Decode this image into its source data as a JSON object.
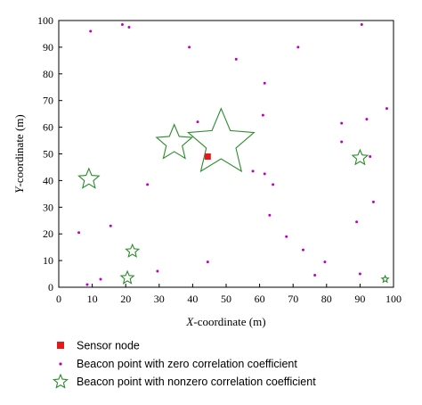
{
  "chart_data": {
    "type": "scatter",
    "title": "",
    "xlabel_italic": "X",
    "xlabel_rest": "-coordinate (m)",
    "ylabel_italic": "Y",
    "ylabel_rest": "-coordinate (m)",
    "xlim": [
      0,
      100
    ],
    "ylim": [
      0,
      100
    ],
    "xticks": [
      "0",
      "10",
      "20",
      "30",
      "40",
      "50",
      "60",
      "70",
      "80",
      "90",
      "100"
    ],
    "yticks": [
      "0",
      "10",
      "20",
      "30",
      "40",
      "50",
      "60",
      "70",
      "80",
      "90",
      "100"
    ],
    "grid": false,
    "legend_position": "below",
    "colors": {
      "sensor": "#e31a1c",
      "beacon_zero": "#c000c0",
      "beacon_nonzero": "#2a8c2a"
    },
    "series": [
      {
        "name": "Sensor node",
        "marker": "square",
        "points": [
          {
            "x": 44.5,
            "y": 49
          }
        ]
      },
      {
        "name": "Beacon point with zero correlation coefficient",
        "marker": "dot",
        "points": [
          {
            "x": 9.5,
            "y": 96
          },
          {
            "x": 19,
            "y": 98.5
          },
          {
            "x": 21,
            "y": 97.5
          },
          {
            "x": 39,
            "y": 90
          },
          {
            "x": 53,
            "y": 85.5
          },
          {
            "x": 71.5,
            "y": 90
          },
          {
            "x": 90.5,
            "y": 98.5
          },
          {
            "x": 61.5,
            "y": 76.5
          },
          {
            "x": 61,
            "y": 64.5
          },
          {
            "x": 41.5,
            "y": 62
          },
          {
            "x": 84.5,
            "y": 61.5
          },
          {
            "x": 92,
            "y": 63
          },
          {
            "x": 98,
            "y": 67
          },
          {
            "x": 84.5,
            "y": 54.5
          },
          {
            "x": 93,
            "y": 49
          },
          {
            "x": 58,
            "y": 43.5
          },
          {
            "x": 61.5,
            "y": 42.5
          },
          {
            "x": 64,
            "y": 38.5
          },
          {
            "x": 26.5,
            "y": 38.5
          },
          {
            "x": 94,
            "y": 32
          },
          {
            "x": 63,
            "y": 27
          },
          {
            "x": 89,
            "y": 24.5
          },
          {
            "x": 15.5,
            "y": 23
          },
          {
            "x": 6,
            "y": 20.5
          },
          {
            "x": 68,
            "y": 19
          },
          {
            "x": 73,
            "y": 14
          },
          {
            "x": 79.5,
            "y": 9.5
          },
          {
            "x": 44.5,
            "y": 9.5
          },
          {
            "x": 76.5,
            "y": 4.5
          },
          {
            "x": 90,
            "y": 5
          },
          {
            "x": 12.5,
            "y": 3
          },
          {
            "x": 8.5,
            "y": 1
          },
          {
            "x": 29.5,
            "y": 6
          }
        ]
      },
      {
        "name": "Beacon point with nonzero correlation coefficient",
        "marker": "star",
        "points": [
          {
            "x": 48.5,
            "y": 54,
            "size": 13
          },
          {
            "x": 34.5,
            "y": 54,
            "size": 7
          },
          {
            "x": 9,
            "y": 40.5,
            "size": 4
          },
          {
            "x": 90,
            "y": 48.5,
            "size": 3
          },
          {
            "x": 22,
            "y": 13.5,
            "size": 2.5
          },
          {
            "x": 20.5,
            "y": 3.5,
            "size": 2.5
          },
          {
            "x": 97.5,
            "y": 3,
            "size": 1.3
          }
        ]
      }
    ]
  }
}
